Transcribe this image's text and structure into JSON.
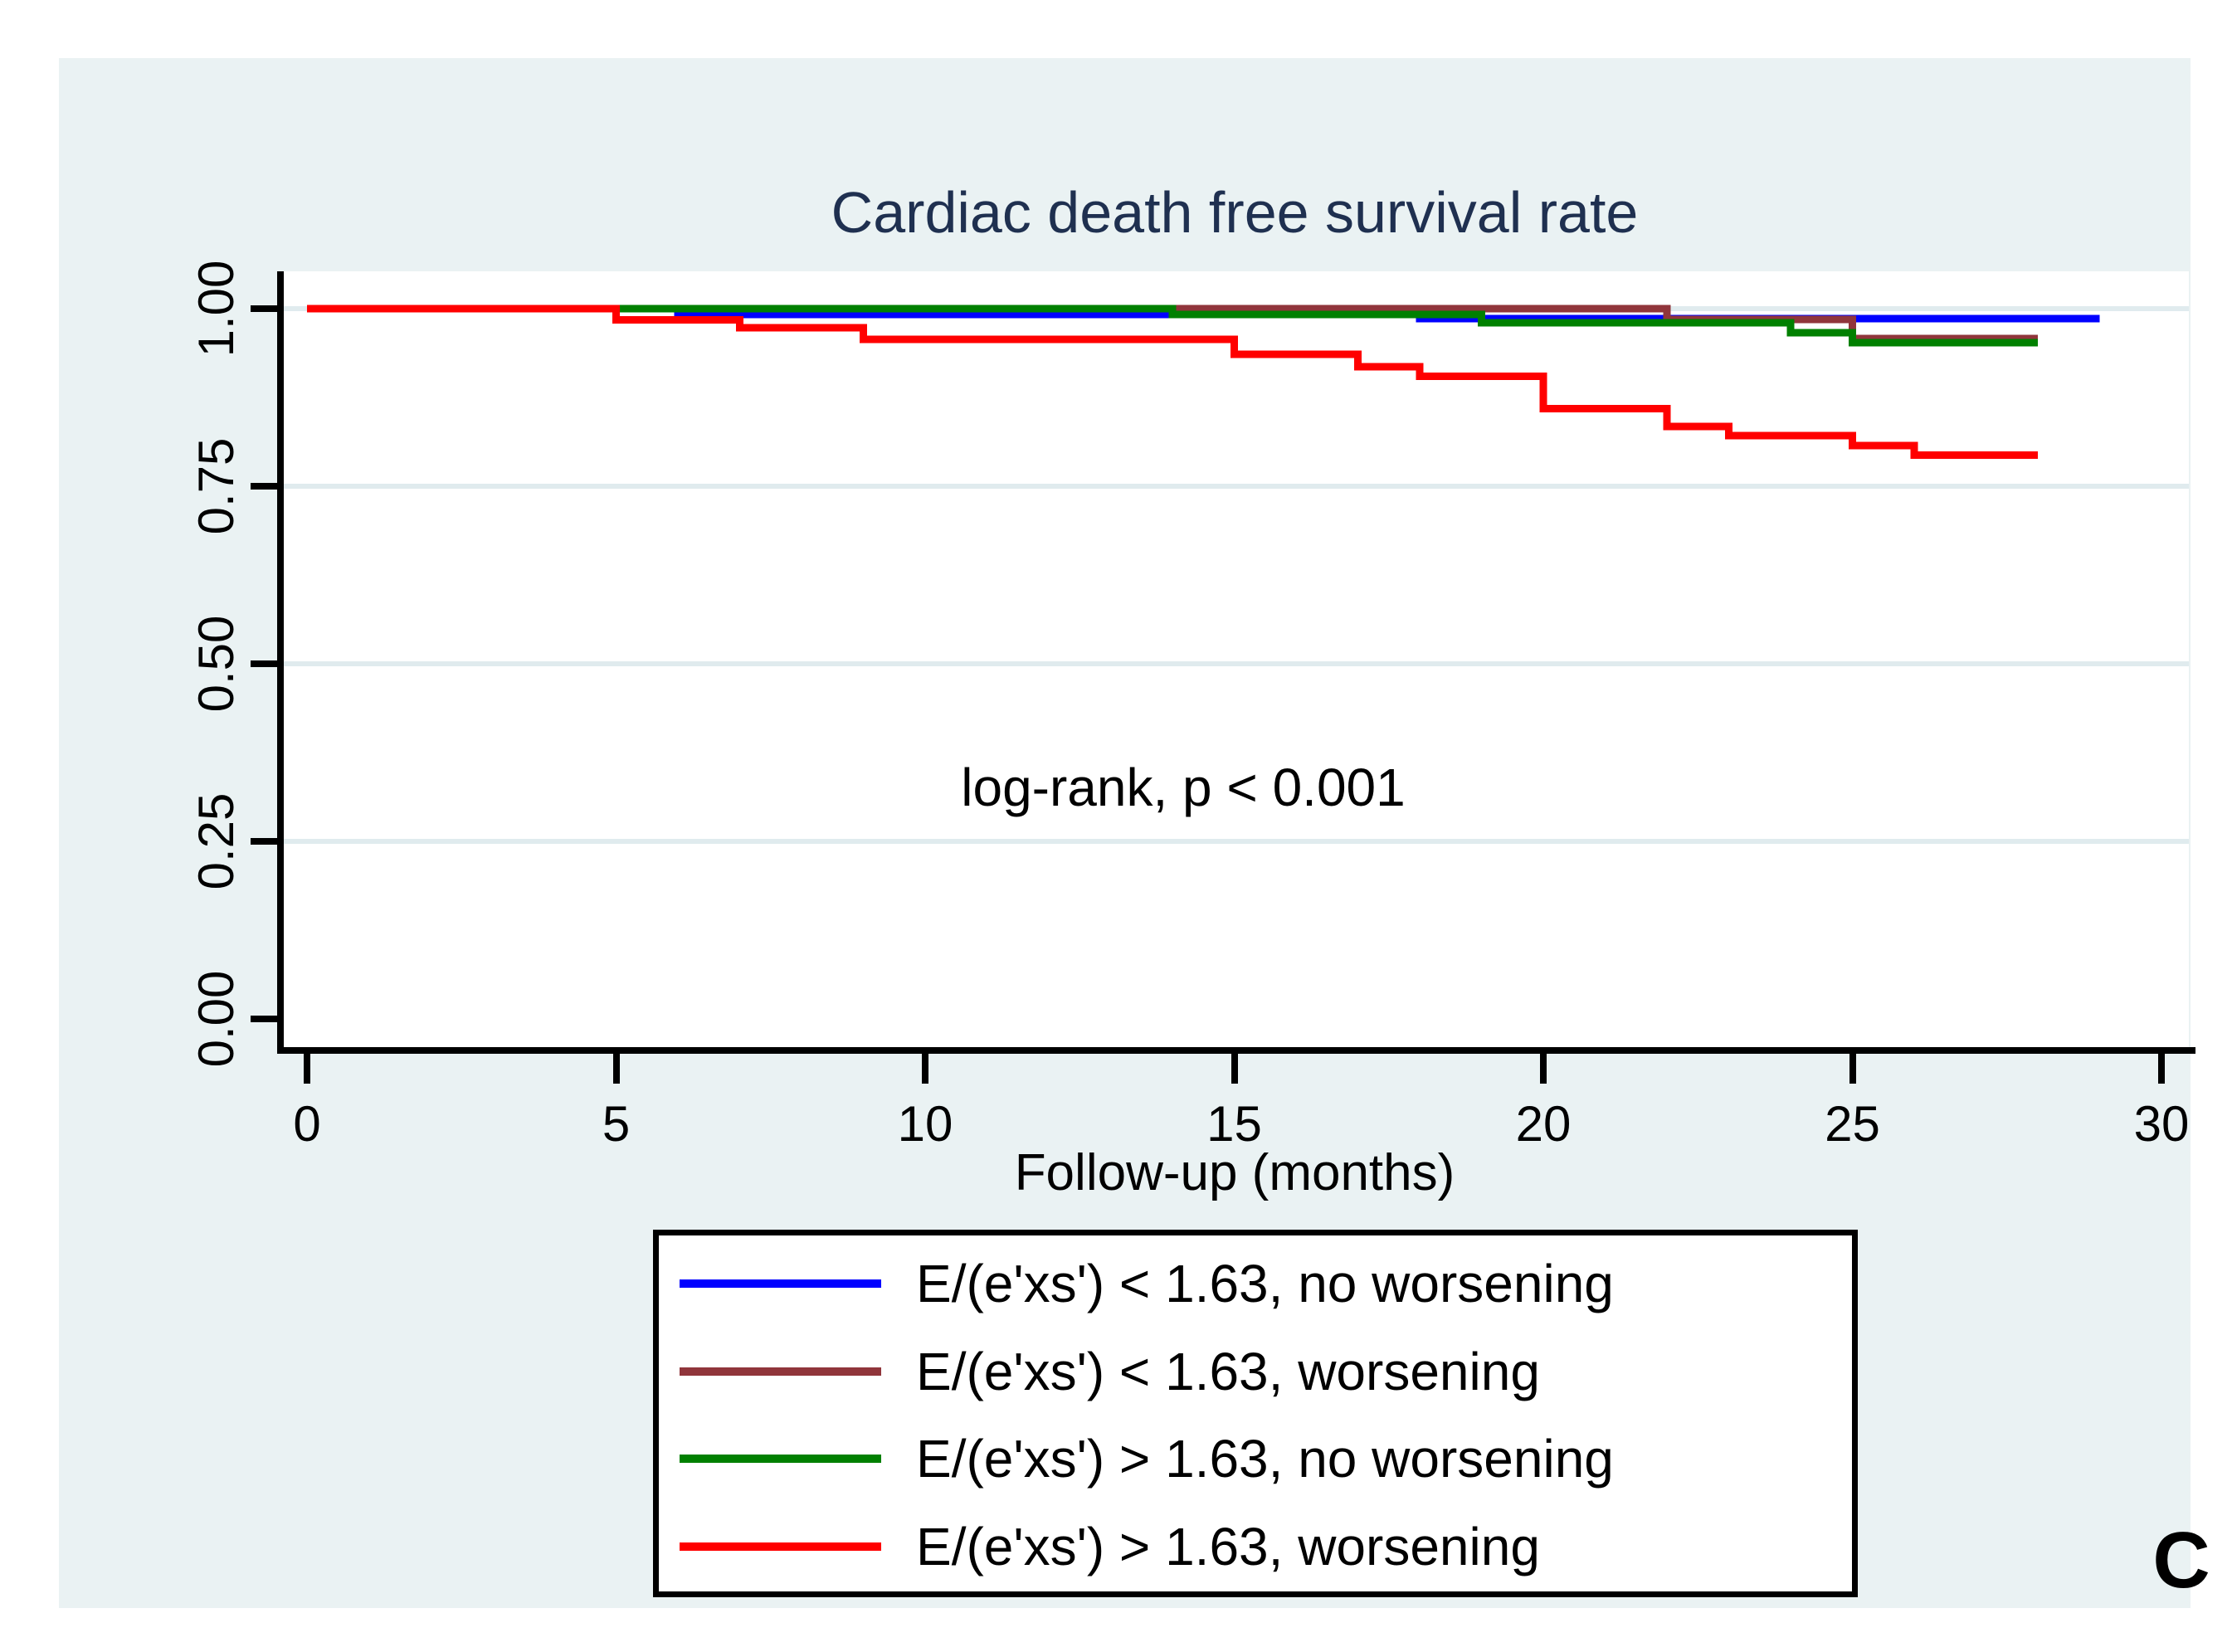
{
  "figure": {
    "panel_label": "C",
    "colors": {
      "panel_background": "#eaf2f3",
      "plot_background": "#ffffff",
      "gridline": "#e0ebee",
      "axis": "#000000",
      "title_text": "#1f3050"
    }
  },
  "chart_data": {
    "type": "line",
    "subtype": "kaplan-meier-step-survival",
    "title": "Cardiac death free survival rate",
    "xlabel": "Follow-up (months)",
    "ylabel": "",
    "annotation": "log-rank, p < 0.001",
    "x_ticks": [
      0,
      5,
      10,
      15,
      20,
      25,
      30
    ],
    "y_tick_labels": [
      "1.00",
      "0.75",
      "0.50",
      "0.25",
      "0.00"
    ],
    "xlim": [
      0,
      30.5
    ],
    "ylim": [
      0.0,
      1.0
    ],
    "grid": "horizontal",
    "legend_position": "bottom",
    "series": [
      {
        "name": "E/(e'xs') < 1.63, no worsening",
        "color": "#0000ff",
        "step": true,
        "points": [
          [
            0,
            1.0
          ],
          [
            6,
            1.0
          ],
          [
            6,
            0.992
          ],
          [
            18,
            0.992
          ],
          [
            18,
            0.986
          ],
          [
            29,
            0.986
          ]
        ]
      },
      {
        "name": "E/(e'xs') < 1.63, worsening",
        "color": "#90353b",
        "step": true,
        "points": [
          [
            0,
            1.0
          ],
          [
            22,
            1.0
          ],
          [
            22,
            0.985
          ],
          [
            25,
            0.985
          ],
          [
            25,
            0.958
          ],
          [
            28,
            0.958
          ]
        ]
      },
      {
        "name": "E/(e'xs') > 1.63, no worsening",
        "color": "#008000",
        "step": true,
        "points": [
          [
            0,
            1.0
          ],
          [
            14,
            1.0
          ],
          [
            14,
            0.992
          ],
          [
            19,
            0.992
          ],
          [
            19,
            0.98
          ],
          [
            24,
            0.98
          ],
          [
            24,
            0.966
          ],
          [
            25,
            0.966
          ],
          [
            25,
            0.952
          ],
          [
            28,
            0.952
          ]
        ]
      },
      {
        "name": "E/(e'xs') > 1.63, worsening",
        "color": "#ff0000",
        "step": true,
        "points": [
          [
            0,
            1.0
          ],
          [
            5,
            1.0
          ],
          [
            5,
            0.984
          ],
          [
            7,
            0.984
          ],
          [
            7,
            0.973
          ],
          [
            9,
            0.973
          ],
          [
            9,
            0.957
          ],
          [
            15,
            0.957
          ],
          [
            15,
            0.936
          ],
          [
            17,
            0.936
          ],
          [
            17,
            0.918
          ],
          [
            18,
            0.918
          ],
          [
            18,
            0.905
          ],
          [
            20,
            0.905
          ],
          [
            20,
            0.859
          ],
          [
            22,
            0.859
          ],
          [
            22,
            0.834
          ],
          [
            23,
            0.834
          ],
          [
            23,
            0.821
          ],
          [
            25,
            0.821
          ],
          [
            25,
            0.807
          ],
          [
            26,
            0.807
          ],
          [
            26,
            0.794
          ],
          [
            28,
            0.794
          ]
        ]
      }
    ]
  }
}
